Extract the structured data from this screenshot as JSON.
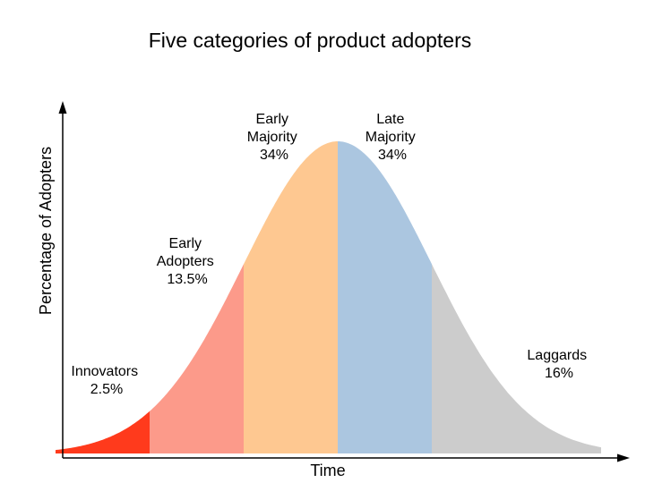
{
  "title": "Five categories of product adopters",
  "x_axis_label": "Time",
  "y_axis_label": "Percentage of Adopters",
  "colors": {
    "innovators": "#ff3a1c",
    "early_adopters": "#fc9a8a",
    "early_majority": "#fec891",
    "late_majority": "#abc6e0",
    "laggards": "#cccccc",
    "axis": "#000000"
  },
  "chart_data": {
    "type": "area",
    "title": "Five categories of product adopters",
    "xlabel": "Time",
    "ylabel": "Percentage of Adopters",
    "segments": [
      {
        "key": "innovators",
        "name": "Innovators",
        "share": "2.5%",
        "value": 2.5,
        "from_sd": -3.0,
        "to_sd": -2.0
      },
      {
        "key": "early_adopters",
        "name": "Early Adopters",
        "share": "13.5%",
        "value": 13.5,
        "from_sd": -2.0,
        "to_sd": -1.0
      },
      {
        "key": "early_majority",
        "name": "Early Majority",
        "share": "34%",
        "value": 34,
        "from_sd": -1.0,
        "to_sd": 0.0
      },
      {
        "key": "late_majority",
        "name": "Late Majority",
        "share": "34%",
        "value": 34,
        "from_sd": 0.0,
        "to_sd": 1.0
      },
      {
        "key": "laggards",
        "name": "Laggards",
        "share": "16%",
        "value": 16,
        "from_sd": 1.0,
        "to_sd": 2.8
      }
    ]
  },
  "labels": {
    "innovators": {
      "line1": "Innovators",
      "line2": "2.5%"
    },
    "early_adopters": {
      "line1": "Early",
      "line2": "Adopters",
      "line3": "13.5%"
    },
    "early_majority": {
      "line1": "Early",
      "line2": "Majority",
      "line3": "34%"
    },
    "late_majority": {
      "line1": "Late",
      "line2": "Majority",
      "line3": "34%"
    },
    "laggards": {
      "line1": "Laggards",
      "line2": "16%"
    }
  }
}
